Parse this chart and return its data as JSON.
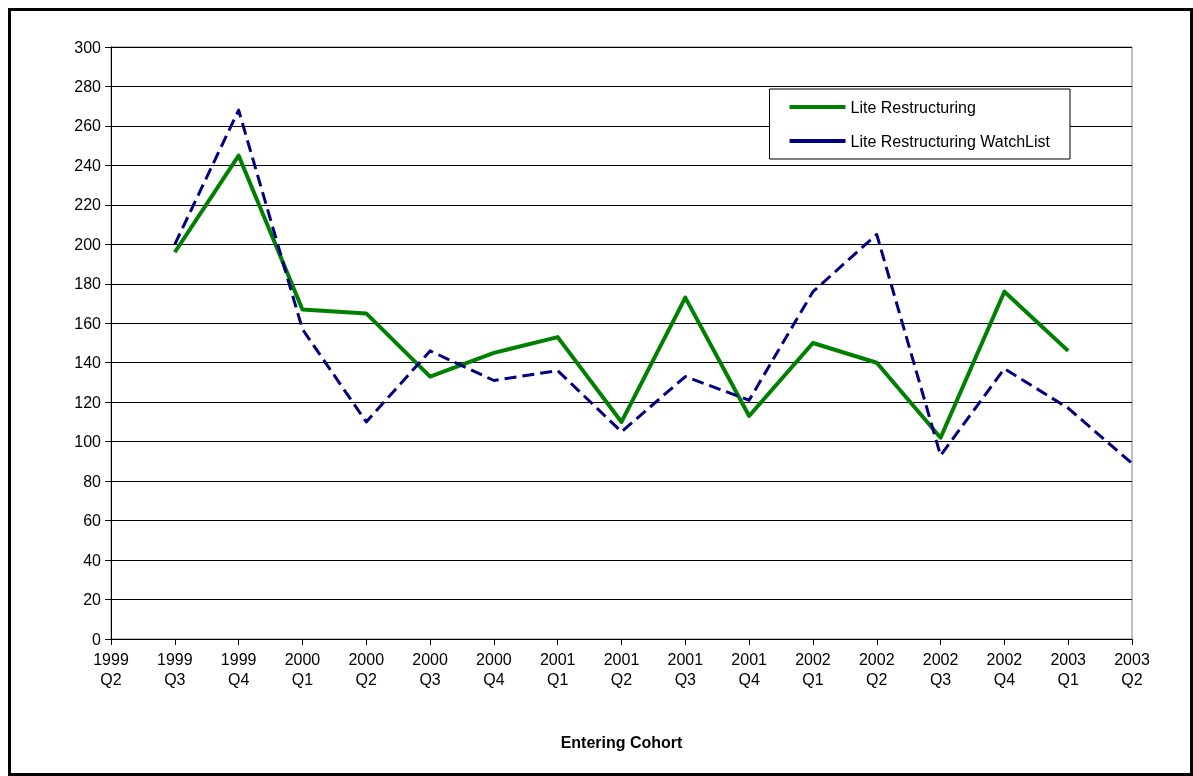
{
  "chart_data": {
    "type": "line",
    "xlabel": "Entering Cohort",
    "categories": [
      "1999\nQ2",
      "1999\nQ3",
      "1999\nQ4",
      "2000\nQ1",
      "2000\nQ2",
      "2000\nQ3",
      "2000\nQ4",
      "2001\nQ1",
      "2001\nQ2",
      "2001\nQ3",
      "2001\nQ4",
      "2002\nQ1",
      "2002\nQ2",
      "2002\nQ3",
      "2002\nQ4",
      "2003\nQ1",
      "2003\nQ2"
    ],
    "series": [
      {
        "name": "Lite Restructuring",
        "color": "#008000",
        "line_style": "solid",
        "values": [
          null,
          196,
          245,
          167,
          165,
          133,
          145,
          153,
          110,
          173,
          113,
          150,
          140,
          102,
          176,
          146,
          null
        ]
      },
      {
        "name": "Lite Restructuring WatchList",
        "color": "#000080",
        "line_style": "dashed",
        "values": [
          null,
          200,
          268,
          157,
          110,
          146,
          131,
          136,
          105,
          133,
          121,
          176,
          205,
          93,
          137,
          117,
          89
        ]
      }
    ],
    "ylim": [
      0,
      300
    ],
    "yticks": [
      0,
      20,
      40,
      60,
      80,
      100,
      120,
      140,
      160,
      180,
      200,
      220,
      240,
      260,
      280,
      300
    ],
    "grid": "y",
    "legend": "top right",
    "marker": "none"
  }
}
